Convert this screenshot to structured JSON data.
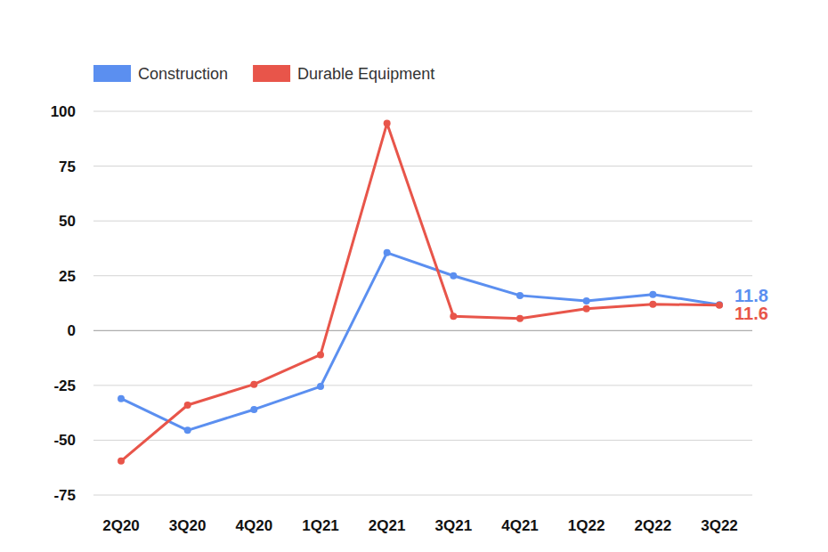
{
  "chart_data": {
    "type": "line",
    "categories": [
      "2Q20",
      "3Q20",
      "4Q20",
      "1Q21",
      "2Q21",
      "3Q21",
      "4Q21",
      "1Q22",
      "2Q22",
      "3Q22"
    ],
    "series": [
      {
        "name": "Construction",
        "color": "#5b8ff0",
        "marker": "circle",
        "values": [
          -31,
          -45.5,
          -36,
          -25.5,
          35.5,
          25,
          16,
          13.5,
          16.5,
          11.8
        ],
        "value_labels": [
          null,
          null,
          null,
          null,
          null,
          null,
          null,
          null,
          null,
          "11.8"
        ]
      },
      {
        "name": "Durable Equipment",
        "color": "#e8554a",
        "marker": "circle",
        "values": [
          -59.5,
          -34,
          -24.5,
          -11,
          94.5,
          6.5,
          5.5,
          10,
          12,
          11.6
        ],
        "value_labels": [
          null,
          null,
          null,
          null,
          null,
          null,
          null,
          null,
          null,
          "11.6"
        ]
      }
    ],
    "ylim": [
      -75,
      100
    ],
    "yticks": [
      -75,
      -50,
      -25,
      0,
      25,
      50,
      75,
      100
    ],
    "grid": true,
    "legend": "top-left"
  }
}
